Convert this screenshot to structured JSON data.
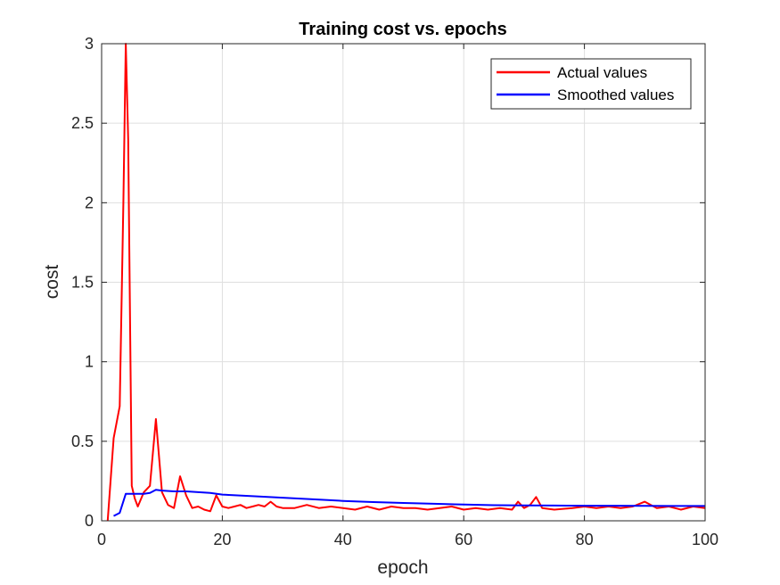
{
  "chart_data": {
    "type": "line",
    "title": "Training cost vs. epochs",
    "xlabel": "epoch",
    "ylabel": "cost",
    "xlim": [
      0,
      100
    ],
    "ylim": [
      0,
      3
    ],
    "xticks": [
      0,
      20,
      40,
      60,
      80,
      100
    ],
    "yticks": [
      0,
      0.5,
      1,
      1.5,
      2,
      2.5,
      3
    ],
    "xtick_labels": [
      "0",
      "20",
      "40",
      "60",
      "80",
      "100"
    ],
    "ytick_labels": [
      "0",
      "0.5",
      "1",
      "1.5",
      "2",
      "2.5",
      "3"
    ],
    "grid": true,
    "legend_position": "top-right",
    "series": [
      {
        "name": "Actual values",
        "color": "#ff0000",
        "x": [
          1,
          2,
          3,
          3.6,
          4,
          4.4,
          5,
          5.5,
          6,
          7,
          8,
          9,
          10,
          11,
          12,
          13,
          14,
          15,
          16,
          17,
          18,
          19,
          20,
          21,
          22,
          23,
          24,
          25,
          26,
          27,
          28,
          29,
          30,
          32,
          34,
          36,
          38,
          40,
          42,
          44,
          46,
          48,
          50,
          52,
          54,
          56,
          58,
          60,
          62,
          64,
          66,
          68,
          69,
          70,
          71,
          72,
          73,
          75,
          78,
          80,
          82,
          84,
          86,
          88,
          90,
          91,
          92,
          94,
          96,
          98,
          100
        ],
        "y": [
          0,
          0.52,
          0.72,
          2.0,
          3.0,
          2.4,
          0.22,
          0.14,
          0.09,
          0.18,
          0.22,
          0.64,
          0.18,
          0.1,
          0.08,
          0.28,
          0.16,
          0.08,
          0.09,
          0.07,
          0.06,
          0.16,
          0.09,
          0.08,
          0.09,
          0.1,
          0.08,
          0.09,
          0.1,
          0.09,
          0.12,
          0.09,
          0.08,
          0.08,
          0.1,
          0.08,
          0.09,
          0.08,
          0.07,
          0.09,
          0.07,
          0.09,
          0.08,
          0.08,
          0.07,
          0.08,
          0.09,
          0.07,
          0.08,
          0.07,
          0.08,
          0.07,
          0.12,
          0.08,
          0.1,
          0.15,
          0.08,
          0.07,
          0.08,
          0.09,
          0.08,
          0.09,
          0.08,
          0.09,
          0.12,
          0.1,
          0.08,
          0.09,
          0.07,
          0.09,
          0.08
        ]
      },
      {
        "name": "Smoothed values",
        "color": "#0000ff",
        "x": [
          2,
          3,
          4,
          5,
          6,
          7,
          8,
          9,
          10,
          12,
          14,
          16,
          18,
          20,
          25,
          30,
          35,
          40,
          45,
          50,
          55,
          60,
          65,
          70,
          75,
          80,
          85,
          90,
          95,
          100
        ],
        "y": [
          0.03,
          0.05,
          0.17,
          0.17,
          0.17,
          0.17,
          0.175,
          0.195,
          0.19,
          0.185,
          0.185,
          0.18,
          0.175,
          0.165,
          0.155,
          0.145,
          0.135,
          0.125,
          0.118,
          0.112,
          0.107,
          0.102,
          0.098,
          0.097,
          0.096,
          0.095,
          0.095,
          0.094,
          0.093,
          0.093
        ]
      }
    ]
  }
}
